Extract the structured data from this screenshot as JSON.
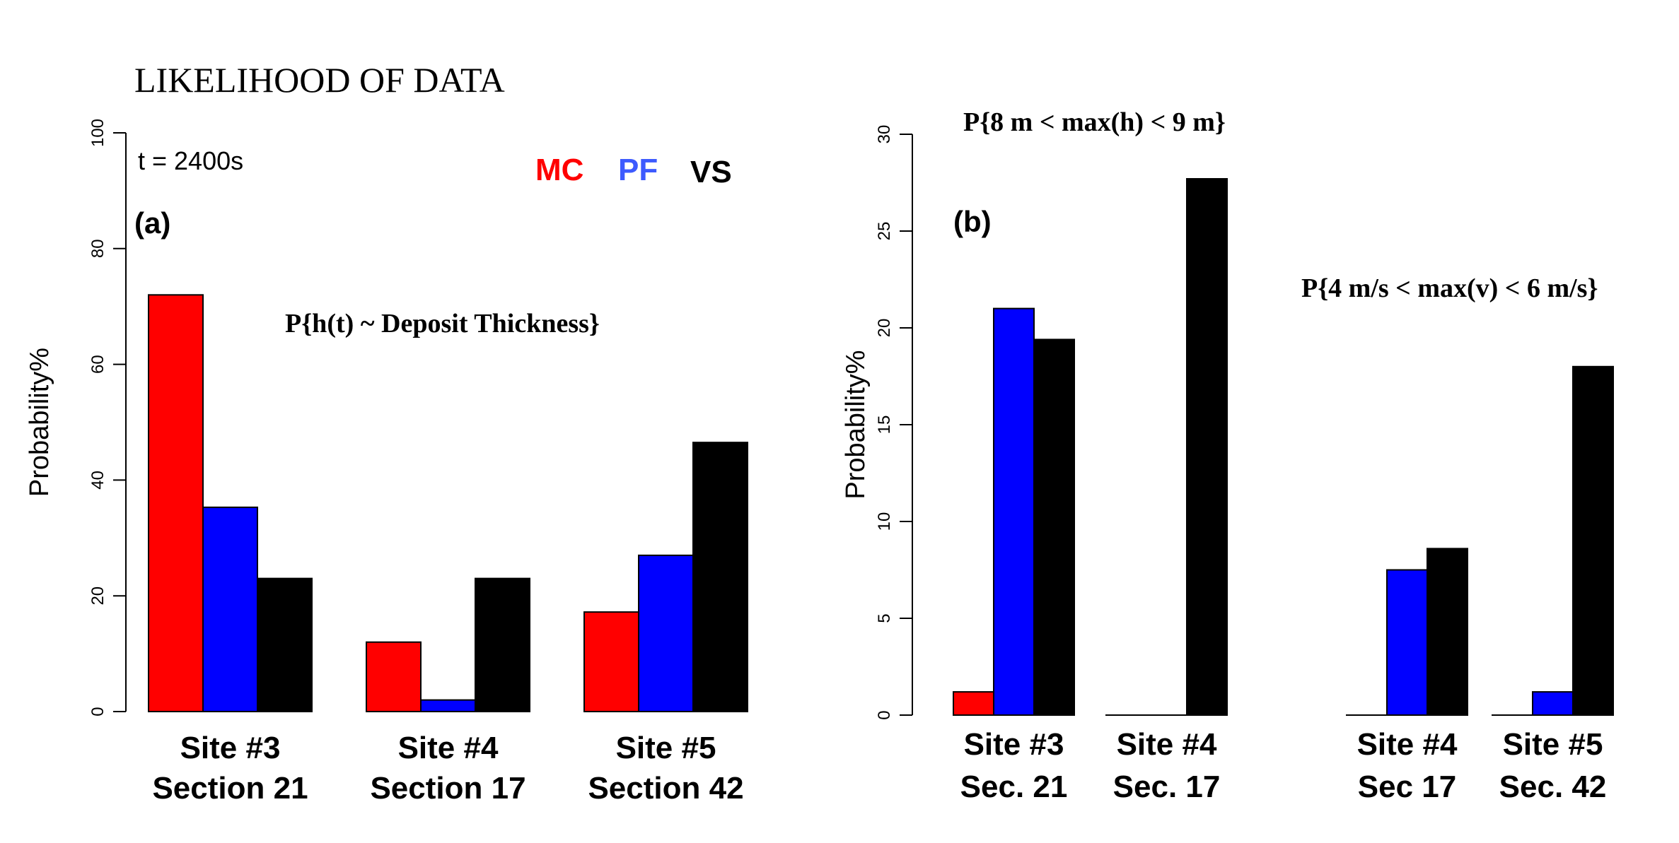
{
  "page_title": "LIKELIHOOD OF DATA",
  "legend": [
    {
      "label": "MC",
      "color": "#ff0000"
    },
    {
      "label": "PF",
      "color": "#3d5afe"
    },
    {
      "label": "VS",
      "color": "#000000"
    }
  ],
  "colors": {
    "MC": "#ff0000",
    "PF": "#0000ff",
    "VS": "#000000"
  },
  "chart_data": [
    {
      "type": "bar",
      "panel_label": "(a)",
      "time_label": "t = 2400s",
      "annotation": "P{h(t) ~ Deposit Thickness}",
      "ylabel": "Probability%",
      "ylim": [
        0,
        100
      ],
      "yticks": [
        0,
        20,
        40,
        60,
        80,
        100
      ],
      "categories": [
        {
          "line1": "Site #3",
          "line2": "Section 21"
        },
        {
          "line1": "Site #4",
          "line2": "Section 17"
        },
        {
          "line1": "Site #5",
          "line2": "Section 42"
        }
      ],
      "series": [
        {
          "name": "MC",
          "values": [
            72,
            12,
            17.2
          ]
        },
        {
          "name": "PF",
          "values": [
            35.3,
            2,
            27
          ]
        },
        {
          "name": "VS",
          "values": [
            23,
            23,
            46.5
          ]
        }
      ]
    },
    {
      "type": "bar",
      "panel_label": "(b)",
      "ylabel": "Probability%",
      "ylim": [
        0,
        30
      ],
      "yticks": [
        0,
        5,
        10,
        15,
        20,
        25,
        30
      ],
      "annotations": [
        "P{8 m < max(h) < 9 m}",
        "P{4 m/s < max(v) < 6 m/s}"
      ],
      "categories": [
        {
          "line1": "Site #3",
          "line2": "Sec. 21"
        },
        {
          "line1": "Site #4",
          "line2": "Sec. 17"
        },
        {
          "line1": "Site #4",
          "line2": "Sec 17"
        },
        {
          "line1": "Site #5",
          "line2": "Sec. 42"
        }
      ],
      "series": [
        {
          "name": "MC",
          "values": [
            1.2,
            0,
            0,
            0
          ]
        },
        {
          "name": "PF",
          "values": [
            21,
            0,
            7.5,
            1.2
          ]
        },
        {
          "name": "VS",
          "values": [
            19.4,
            27.7,
            8.6,
            18
          ]
        }
      ]
    }
  ]
}
